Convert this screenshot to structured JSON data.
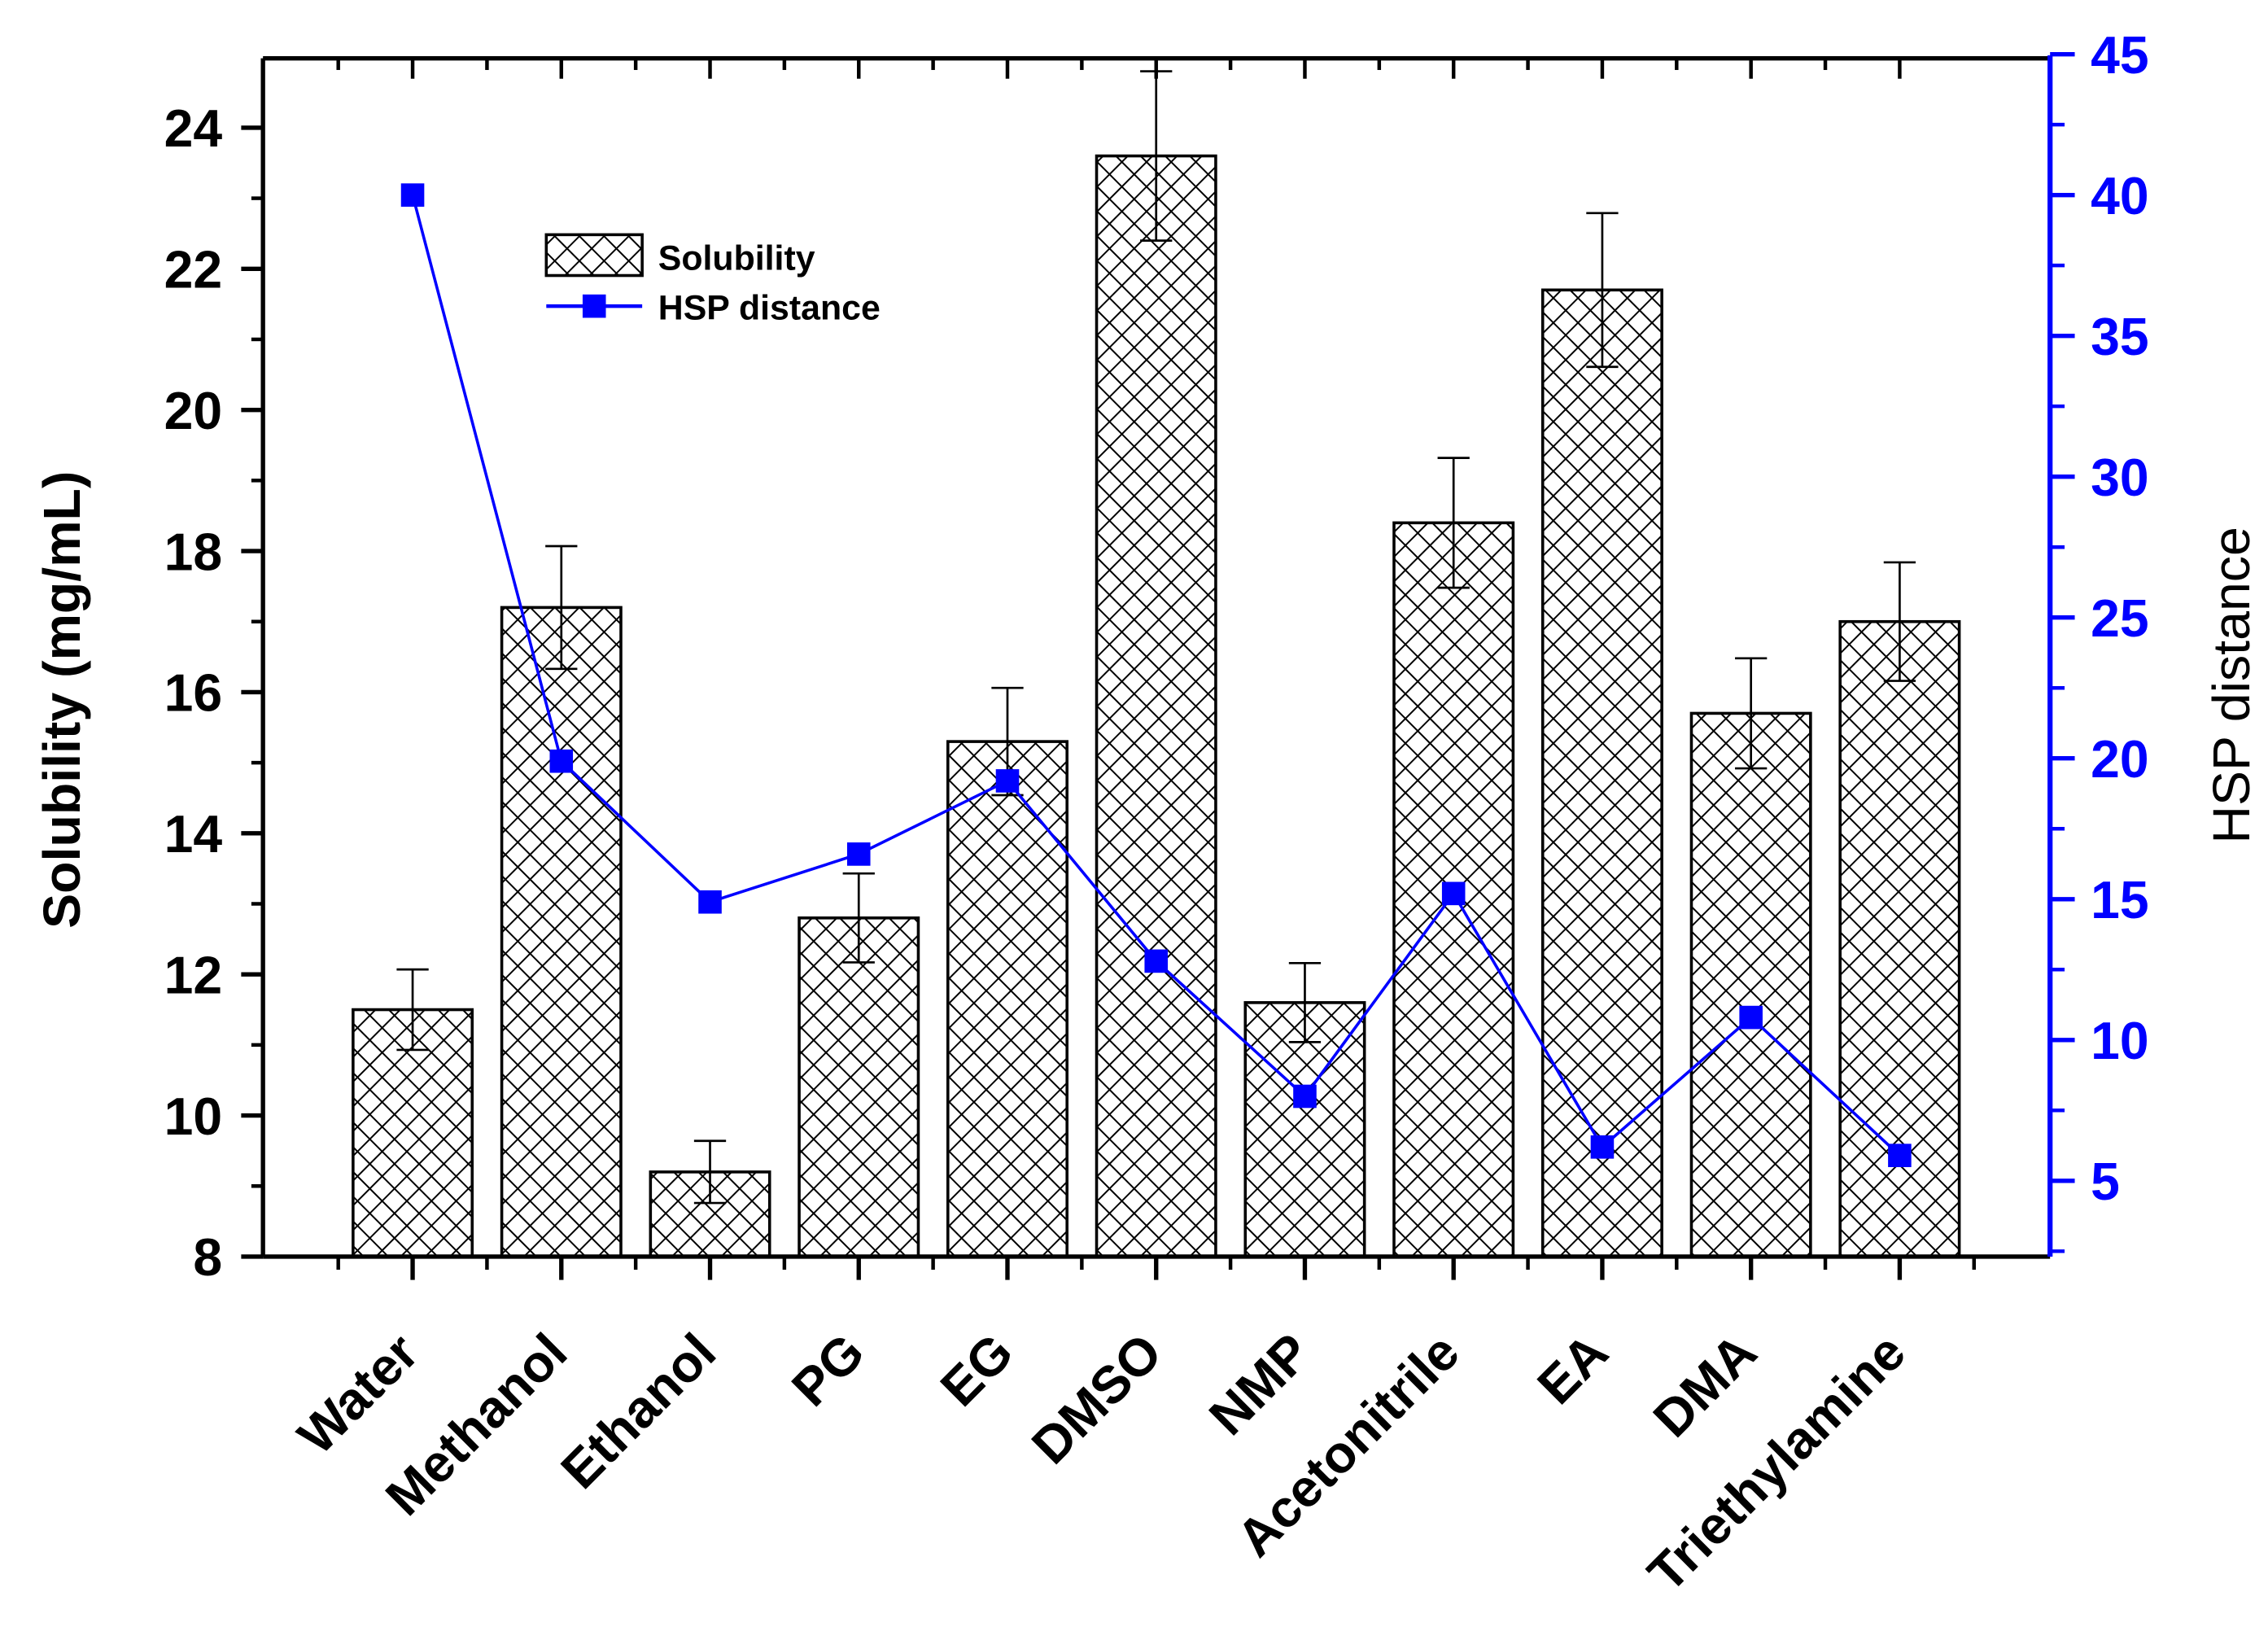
{
  "chart_data": {
    "type": "bar",
    "title": "",
    "xlabel": "",
    "ylabel": "Solubility (mg/mL)",
    "ylabel_right": "HSP distance",
    "categories": [
      "Water",
      "Methanol",
      "Ethanol",
      "PG",
      "EG",
      "DMSO",
      "NMP",
      "Acetonitrile",
      "EA",
      "DMA",
      "Triethylamine"
    ],
    "series": [
      {
        "name": "Solubility",
        "type": "bar",
        "axis": "left",
        "pattern": "crosshatch",
        "color": "#000000",
        "values": [
          11.5,
          17.2,
          9.2,
          12.8,
          15.3,
          23.6,
          11.6,
          18.4,
          21.7,
          15.7,
          17.0
        ],
        "errors": [
          0.57,
          0.87,
          0.44,
          0.63,
          0.76,
          1.2,
          0.56,
          0.92,
          1.09,
          0.78,
          0.84
        ]
      },
      {
        "name": "HSP distance",
        "type": "line",
        "axis": "right",
        "marker": "square",
        "color": "#0000ff",
        "values": [
          40.0,
          19.9,
          14.9,
          16.6,
          19.2,
          12.8,
          8.0,
          15.2,
          6.2,
          10.8,
          5.9
        ]
      }
    ],
    "ylim": [
      8,
      25
    ],
    "ylim_right": [
      2.4,
      45
    ],
    "yticks": [
      8,
      10,
      12,
      14,
      16,
      18,
      20,
      22,
      24
    ],
    "yticks_right": [
      5,
      10,
      15,
      20,
      25,
      30,
      35,
      40,
      45
    ],
    "grid": false,
    "legend_position": "upper-left-inside"
  },
  "legend": {
    "items": [
      {
        "label": "Solubility"
      },
      {
        "label": "HSP distance"
      }
    ]
  },
  "colors": {
    "accent": "#0000ff",
    "axis": "#000000"
  }
}
